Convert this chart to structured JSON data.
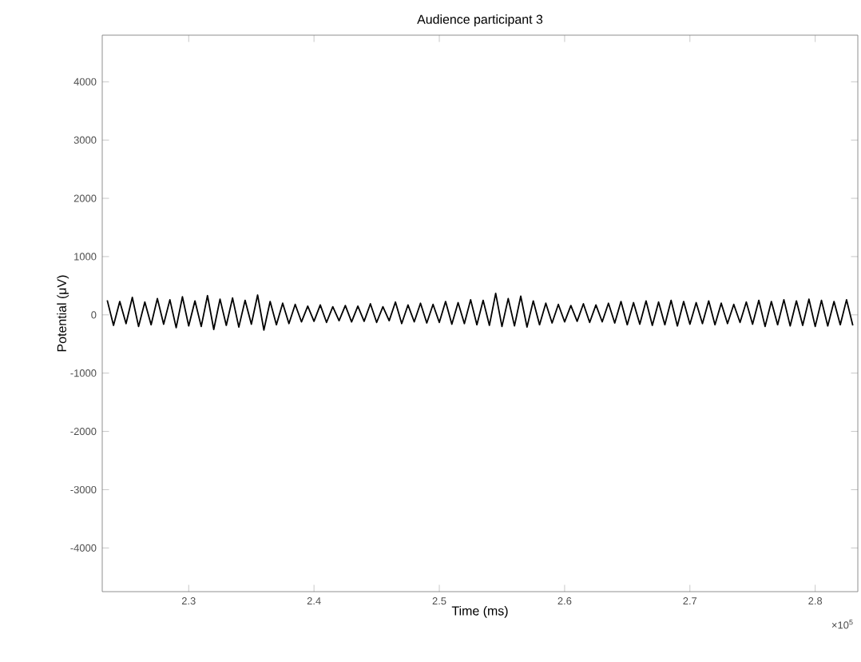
{
  "chart_data": {
    "type": "line",
    "title": "Audience participant 3",
    "xlabel": "Time (ms)",
    "ylabel": "Potential (μV)",
    "annotations": [
      "×10$^{5}$"
    ],
    "xlim": [
      2.231,
      2.834
    ],
    "ylim": [
      -4750,
      4800
    ],
    "xticks": [
      2.3,
      2.4,
      2.5,
      2.6,
      2.7,
      2.8
    ],
    "yticks": [
      -4000,
      -3000,
      -2000,
      -1000,
      0,
      1000,
      2000,
      3000,
      4000
    ],
    "grid": false,
    "marker": "none",
    "line_style": "solid",
    "x": [
      2.235,
      2.24,
      2.245,
      2.25,
      2.255,
      2.26,
      2.265,
      2.27,
      2.275,
      2.28,
      2.285,
      2.29,
      2.295,
      2.3,
      2.305,
      2.31,
      2.315,
      2.32,
      2.325,
      2.33,
      2.335,
      2.34,
      2.345,
      2.35,
      2.355,
      2.36,
      2.365,
      2.37,
      2.375,
      2.38,
      2.385,
      2.39,
      2.395,
      2.4,
      2.405,
      2.41,
      2.415,
      2.42,
      2.425,
      2.43,
      2.435,
      2.44,
      2.445,
      2.45,
      2.455,
      2.46,
      2.465,
      2.47,
      2.475,
      2.48,
      2.485,
      2.49,
      2.495,
      2.5,
      2.505,
      2.51,
      2.515,
      2.52,
      2.525,
      2.53,
      2.535,
      2.54,
      2.545,
      2.55,
      2.555,
      2.56,
      2.565,
      2.57,
      2.575,
      2.58,
      2.585,
      2.59,
      2.595,
      2.6,
      2.605,
      2.61,
      2.615,
      2.62,
      2.625,
      2.63,
      2.635,
      2.64,
      2.645,
      2.65,
      2.655,
      2.66,
      2.665,
      2.67,
      2.675,
      2.68,
      2.685,
      2.69,
      2.695,
      2.7,
      2.705,
      2.71,
      2.715,
      2.72,
      2.725,
      2.73,
      2.735,
      2.74,
      2.745,
      2.75,
      2.755,
      2.76,
      2.765,
      2.77,
      2.775,
      2.78,
      2.785,
      2.79,
      2.795,
      2.8,
      2.805,
      2.81,
      2.815,
      2.82,
      2.825,
      2.83
    ],
    "series": [
      {
        "color": "#000000",
        "values": [
          250,
          -180,
          230,
          -150,
          300,
          -200,
          220,
          -170,
          280,
          -160,
          260,
          -220,
          310,
          -190,
          240,
          -200,
          330,
          -250,
          270,
          -180,
          290,
          -210,
          250,
          -160,
          340,
          -260,
          230,
          -170,
          200,
          -150,
          180,
          -120,
          150,
          -110,
          170,
          -130,
          140,
          -100,
          160,
          -120,
          150,
          -110,
          190,
          -130,
          140,
          -100,
          220,
          -150,
          170,
          -120,
          200,
          -140,
          180,
          -130,
          230,
          -160,
          210,
          -150,
          260,
          -170,
          250,
          -180,
          370,
          -200,
          280,
          -190,
          320,
          -210,
          240,
          -170,
          200,
          -140,
          180,
          -120,
          160,
          -110,
          190,
          -130,
          170,
          -120,
          200,
          -140,
          230,
          -170,
          210,
          -160,
          240,
          -180,
          220,
          -170,
          250,
          -190,
          230,
          -160,
          210,
          -150,
          240,
          -170,
          200,
          -150,
          180,
          -130,
          220,
          -160,
          250,
          -200,
          230,
          -170,
          260,
          -190,
          240,
          -180,
          270,
          -200,
          250,
          -190,
          230,
          -170,
          260,
          -180
        ]
      }
    ]
  }
}
